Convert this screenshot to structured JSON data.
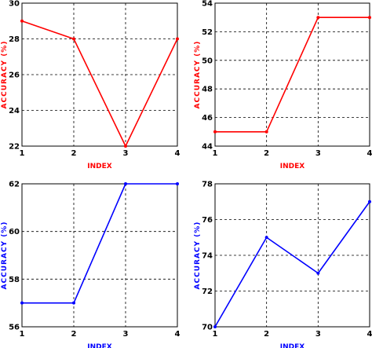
{
  "chart_data": [
    {
      "type": "line",
      "x": [
        1,
        2,
        3,
        4
      ],
      "series": [
        {
          "values": [
            29,
            28,
            22,
            28
          ]
        }
      ],
      "xlabel": "INDEX",
      "ylabel": "ACCURACY (%)",
      "xlim": [
        1,
        4
      ],
      "ylim": [
        22,
        30
      ],
      "xticks": [
        "1",
        "2",
        "3",
        "4"
      ],
      "yticks": [
        "22",
        "24",
        "26",
        "28",
        "30"
      ],
      "grid": true,
      "color": "#ff0000"
    },
    {
      "type": "line",
      "x": [
        1,
        2,
        3,
        4
      ],
      "series": [
        {
          "values": [
            45,
            45,
            53,
            53
          ]
        }
      ],
      "xlabel": "INDEX",
      "ylabel": "ACCURACY (%)",
      "xlim": [
        1,
        4
      ],
      "ylim": [
        44,
        54
      ],
      "xticks": [
        "1",
        "2",
        "3",
        "4"
      ],
      "yticks": [
        "44",
        "46",
        "48",
        "50",
        "52",
        "54"
      ],
      "grid": true,
      "color": "#ff0000"
    },
    {
      "type": "line",
      "x": [
        1,
        2,
        3,
        4
      ],
      "series": [
        {
          "values": [
            57,
            57,
            62,
            62
          ]
        }
      ],
      "xlabel": "INDEX",
      "ylabel": "ACCURACY (%)",
      "xlim": [
        1,
        4
      ],
      "ylim": [
        56,
        62
      ],
      "xticks": [
        "1",
        "2",
        "3",
        "4"
      ],
      "yticks": [
        "56",
        "58",
        "60",
        "62"
      ],
      "grid": true,
      "color": "#0000ff"
    },
    {
      "type": "line",
      "x": [
        1,
        2,
        3,
        4
      ],
      "series": [
        {
          "values": [
            70,
            75,
            73,
            77
          ]
        }
      ],
      "xlabel": "INDEX",
      "ylabel": "ACCURACY (%)",
      "xlim": [
        1,
        4
      ],
      "ylim": [
        70,
        78
      ],
      "xticks": [
        "1",
        "2",
        "3",
        "4"
      ],
      "yticks": [
        "70",
        "72",
        "74",
        "76",
        "78"
      ],
      "grid": true,
      "color": "#0000ff"
    }
  ]
}
